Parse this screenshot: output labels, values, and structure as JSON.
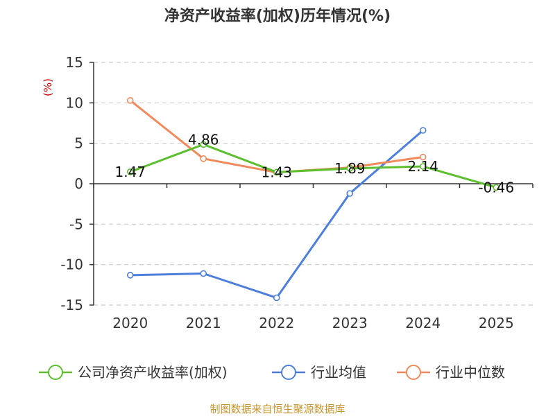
{
  "chart_data": {
    "type": "line",
    "title": "净资产收益率(加权)历年情况(%)",
    "ylabel": "(%)",
    "xlabel": "",
    "categories": [
      "2020",
      "2021",
      "2022",
      "2023",
      "2024",
      "2025"
    ],
    "ylim": [
      -15,
      15
    ],
    "yticks": [
      15,
      10,
      5,
      0,
      -5,
      -10,
      -15
    ],
    "grid": true,
    "legend_position": "bottom",
    "series": [
      {
        "name": "公司净资产收益率(加权)",
        "color": "#5cc02e",
        "values": [
          1.47,
          4.86,
          1.43,
          1.89,
          2.14,
          -0.46
        ],
        "labels": [
          "1.47",
          "4.86",
          "1.43",
          "1.89",
          "2.14",
          "-0.46"
        ]
      },
      {
        "name": "行业均值",
        "color": "#4c7fdc",
        "values": [
          -11.3,
          -11.1,
          -14.1,
          -1.2,
          6.6,
          null
        ]
      },
      {
        "name": "行业中位数",
        "color": "#f2895a",
        "values": [
          10.3,
          3.1,
          1.4,
          2.0,
          3.3,
          null
        ]
      }
    ]
  },
  "source": "制图数据来自恒生聚源数据库"
}
